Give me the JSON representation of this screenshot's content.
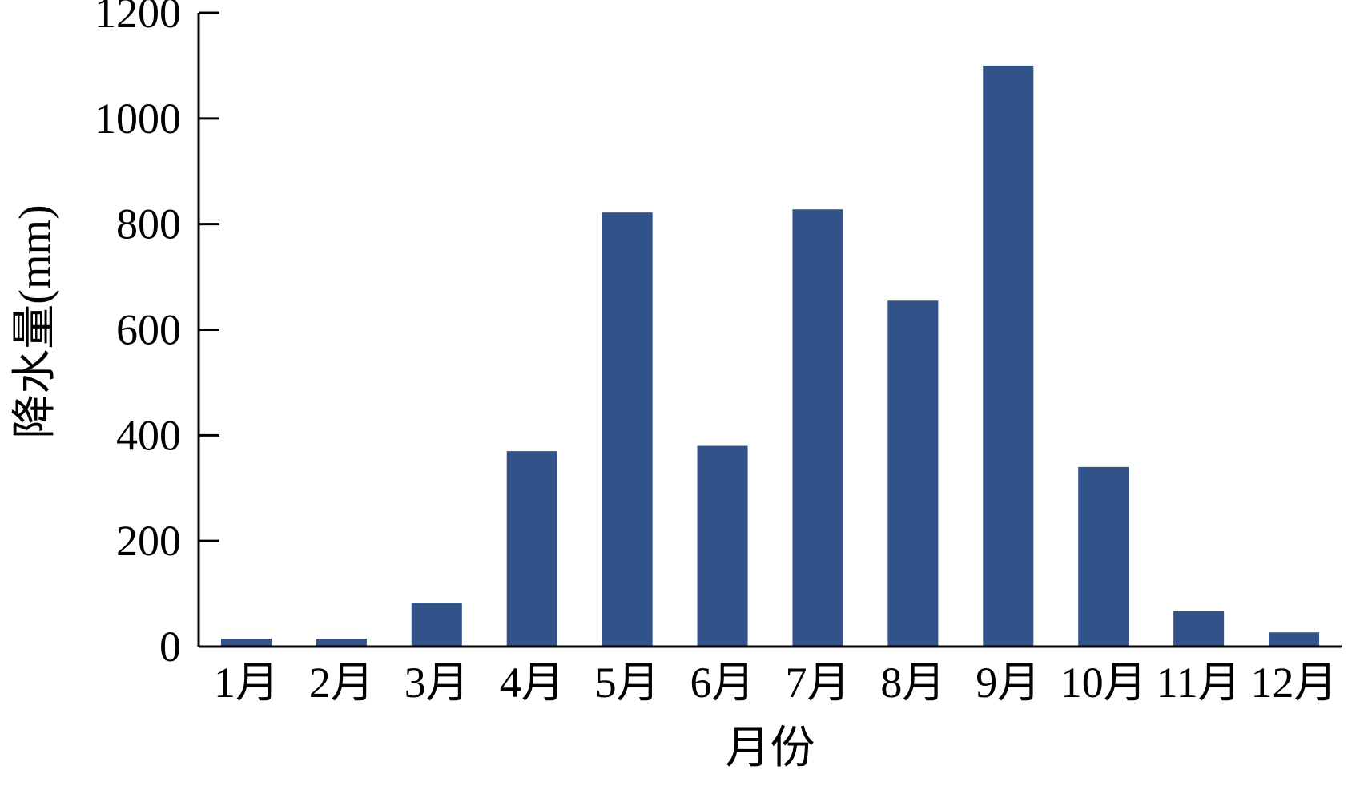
{
  "chart_data": {
    "type": "bar",
    "title": "",
    "xlabel": "月份",
    "ylabel": "降水量(mm)",
    "categories": [
      "1月",
      "2月",
      "3月",
      "4月",
      "5月",
      "6月",
      "7月",
      "8月",
      "9月",
      "10月",
      "11月",
      "12月"
    ],
    "values": [
      15,
      15,
      83,
      370,
      822,
      380,
      828,
      655,
      1100,
      340,
      67,
      27
    ],
    "ylim": [
      0,
      1200
    ],
    "yticks": [
      0,
      200,
      400,
      600,
      800,
      1000,
      1200
    ],
    "grid": false,
    "legend": "none",
    "bar_color": "#32538a",
    "axis_color": "#000000"
  }
}
